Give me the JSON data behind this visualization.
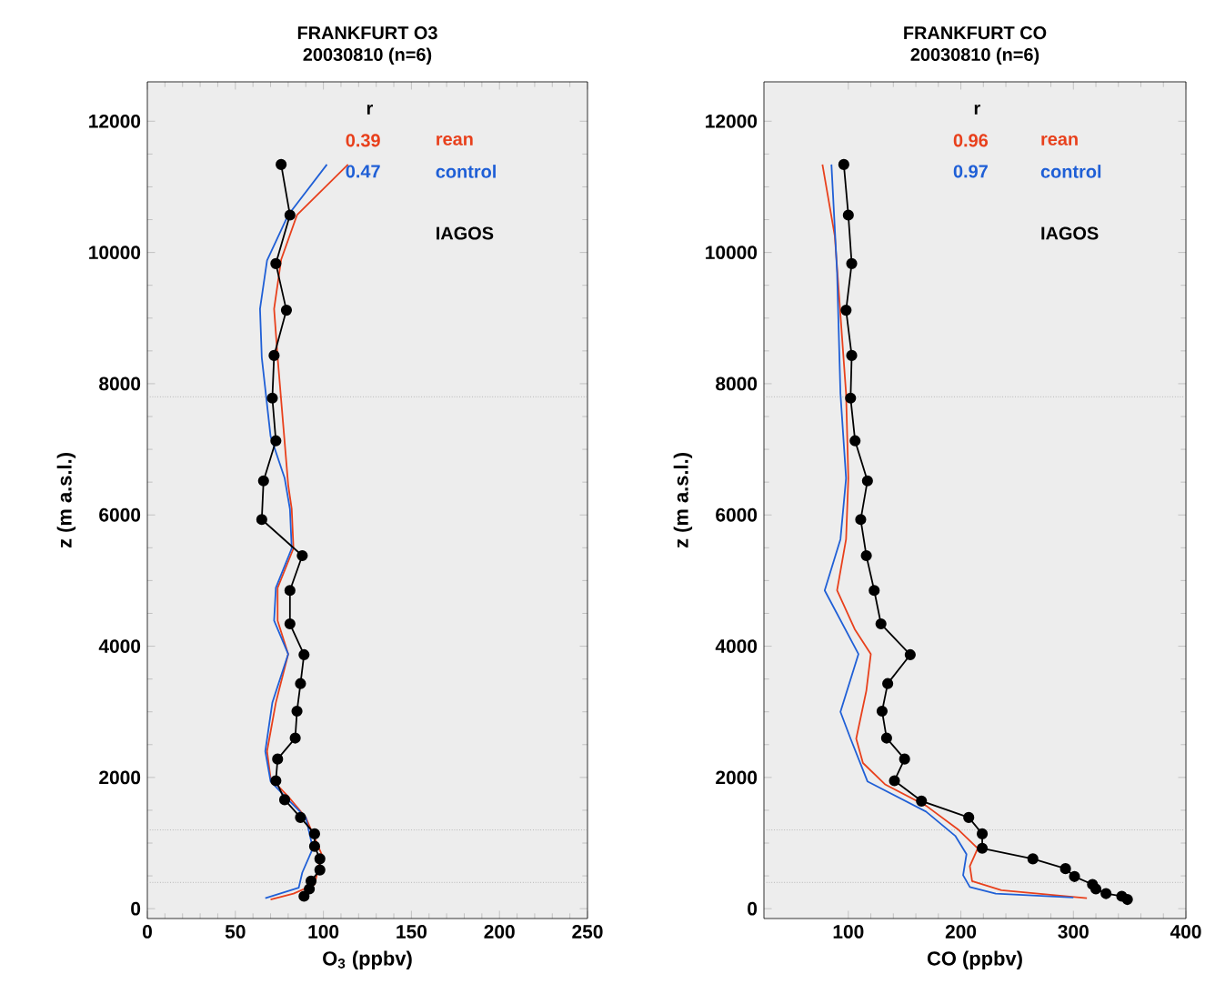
{
  "chart_data": [
    {
      "type": "line",
      "title": "FRANKFURT O3",
      "subtitle": "20030810 (n=6)",
      "xlabel": "O$_{3}$ (ppbv)",
      "ylabel": "z (m a.s.l.)",
      "annotations": [
        "r",
        "0.39",
        "0.47"
      ],
      "xlim": [
        0,
        250
      ],
      "xticks": [
        0,
        50,
        100,
        150,
        200,
        250
      ],
      "ylim": [
        -150,
        12600
      ],
      "yticks": [
        0,
        2000,
        4000,
        6000,
        8000,
        10000,
        12000
      ],
      "legend": "top right",
      "grid": false,
      "ref_lines": [
        {
          "axis": "y",
          "value": 7800,
          "color": "#9a9a9a",
          "line_style": "dotted"
        },
        {
          "axis": "y",
          "value": 1200,
          "color": "#9a9a9a",
          "line_style": "dotted"
        },
        {
          "axis": "y",
          "value": 400,
          "color": "#9a9a9a",
          "line_style": "dotted"
        }
      ],
      "series": [
        {
          "name": "rean",
          "color": "#e8401c",
          "marker": "none",
          "x": [
            114,
            85,
            76,
            72,
            74,
            78,
            80,
            82,
            83,
            74,
            74,
            80,
            73,
            68,
            70,
            80,
            90,
            99,
            95,
            83,
            70
          ],
          "values": [
            11340,
            10570,
            9890,
            9140,
            8400,
            7110,
            6460,
            6090,
            5490,
            4890,
            4390,
            3880,
            3140,
            2400,
            1990,
            1710,
            1390,
            830,
            370,
            230,
            140
          ]
        },
        {
          "name": "control",
          "color": "#1f5fd6",
          "marker": "none",
          "x": [
            102,
            80,
            68,
            64,
            65,
            70,
            78,
            81,
            82,
            73,
            72,
            80,
            71,
            67,
            70,
            80,
            90,
            94,
            88,
            86,
            67
          ],
          "values": [
            11340,
            10570,
            9880,
            9140,
            8400,
            7200,
            6560,
            6090,
            5490,
            4890,
            4390,
            3880,
            3140,
            2400,
            1940,
            1660,
            1390,
            920,
            550,
            320,
            160
          ]
        },
        {
          "name": "IAGOS",
          "color": "#000000",
          "marker": "circle",
          "x": [
            76,
            81,
            73,
            79,
            72,
            71,
            73,
            66,
            65,
            88,
            81,
            81,
            89,
            87,
            85,
            84,
            74,
            73,
            78,
            87,
            95,
            95,
            98,
            98,
            93,
            92,
            89
          ],
          "values": [
            11340,
            10570,
            9830,
            9120,
            8430,
            7780,
            7130,
            6520,
            5930,
            5380,
            4850,
            4340,
            3870,
            3430,
            3010,
            2600,
            2280,
            1950,
            1660,
            1390,
            1140,
            950,
            760,
            590,
            420,
            300,
            190
          ]
        }
      ]
    },
    {
      "type": "line",
      "title": "FRANKFURT CO",
      "subtitle": "20030810 (n=6)",
      "xlabel": "CO (ppbv)",
      "ylabel": "z (m a.s.l.)",
      "annotations": [
        "r",
        "0.96",
        "0.97"
      ],
      "xlim": [
        25,
        400
      ],
      "xticks": [
        100,
        200,
        300,
        400
      ],
      "ylim": [
        -150,
        12600
      ],
      "yticks": [
        0,
        2000,
        4000,
        6000,
        8000,
        10000,
        12000
      ],
      "legend": "top right",
      "grid": false,
      "ref_lines": [
        {
          "axis": "y",
          "value": 7800,
          "color": "#9a9a9a",
          "line_style": "dotted"
        },
        {
          "axis": "y",
          "value": 1200,
          "color": "#9a9a9a",
          "line_style": "dotted"
        },
        {
          "axis": "y",
          "value": 400,
          "color": "#9a9a9a",
          "line_style": "dotted"
        }
      ],
      "series": [
        {
          "name": "rean",
          "color": "#e8401c",
          "marker": "none",
          "x": [
            77,
            88,
            98,
            100,
            98,
            90,
            106,
            120,
            116,
            107,
            113,
            133,
            169,
            198,
            215,
            208,
            210,
            236,
            312
          ],
          "values": [
            11340,
            10250,
            7850,
            6560,
            5630,
            4850,
            4250,
            3880,
            3320,
            2590,
            2220,
            1890,
            1570,
            1200,
            920,
            650,
            420,
            280,
            160
          ]
        },
        {
          "name": "control",
          "color": "#1f5fd6",
          "marker": "none",
          "x": [
            85,
            90,
            93,
            98,
            93,
            79,
            109,
            93,
            102,
            117,
            169,
            195,
            205,
            202,
            208,
            231,
            300
          ],
          "values": [
            11340,
            9700,
            7850,
            6560,
            5630,
            4850,
            3880,
            3000,
            2590,
            1940,
            1480,
            1110,
            830,
            510,
            330,
            230,
            170
          ]
        },
        {
          "name": "IAGOS",
          "color": "#000000",
          "marker": "circle",
          "x": [
            96,
            100,
            103,
            98,
            103,
            102,
            106,
            117,
            111,
            116,
            123,
            129,
            155,
            135,
            130,
            134,
            150,
            141,
            165,
            207,
            219,
            219,
            264,
            293,
            301,
            317,
            320,
            329,
            343,
            348
          ],
          "values": [
            11340,
            10570,
            9830,
            9120,
            8430,
            7780,
            7130,
            6520,
            5930,
            5380,
            4850,
            4340,
            3870,
            3430,
            3010,
            2600,
            2280,
            1950,
            1640,
            1390,
            1140,
            920,
            760,
            610,
            490,
            370,
            300,
            230,
            190,
            140
          ]
        }
      ]
    }
  ]
}
